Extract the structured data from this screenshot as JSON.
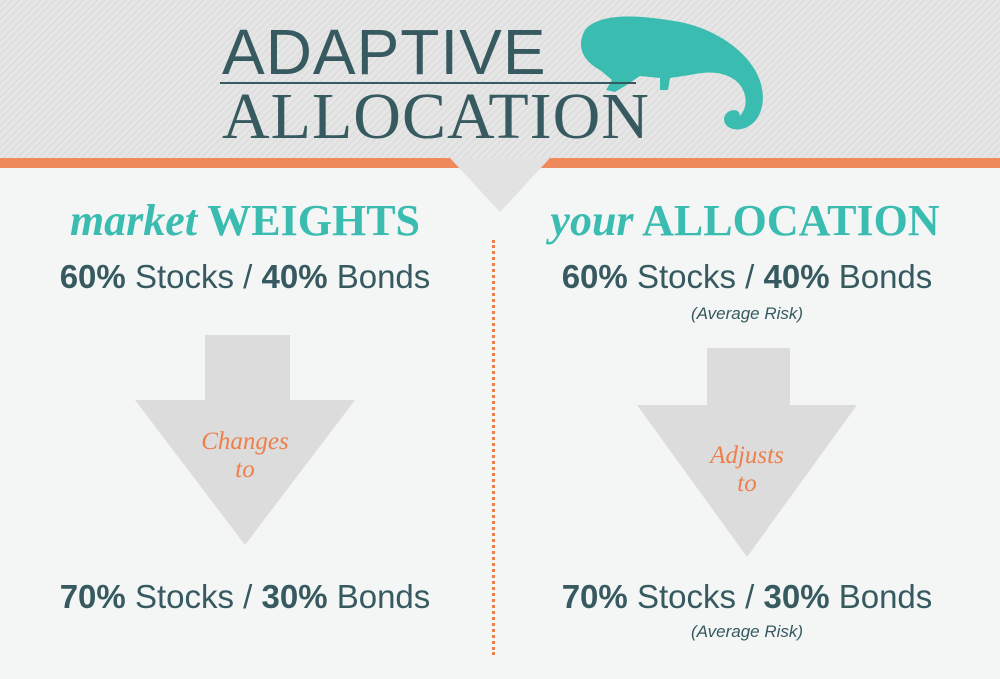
{
  "title": {
    "line1": "ADAPTIVE",
    "line2": "ALLOCATION"
  },
  "colors": {
    "teal": "#3bbcb0",
    "dark": "#365a5f",
    "orange": "#ee7f4a",
    "arrow": "#dcdcdc"
  },
  "logo_icon": "chameleon-icon",
  "left": {
    "heading_italic": "market",
    "heading_bold": "WEIGHTS",
    "before": {
      "stocks_pct": "60%",
      "stocks": "Stocks /",
      "bonds_pct": "40%",
      "bonds": "Bonds"
    },
    "arrow_label": {
      "l1": "Changes",
      "l2": "to"
    },
    "after": {
      "stocks_pct": "70%",
      "stocks": "Stocks /",
      "bonds_pct": "30%",
      "bonds": "Bonds"
    }
  },
  "right": {
    "heading_italic": "your",
    "heading_bold": "ALLOCATION",
    "before": {
      "stocks_pct": "60%",
      "stocks": "Stocks /",
      "bonds_pct": "40%",
      "bonds": "Bonds",
      "note": "(Average Risk)"
    },
    "arrow_label": {
      "l1": "Adjusts",
      "l2": "to"
    },
    "after": {
      "stocks_pct": "70%",
      "stocks": "Stocks /",
      "bonds_pct": "30%",
      "bonds": "Bonds",
      "note": "(Average Risk)"
    }
  }
}
